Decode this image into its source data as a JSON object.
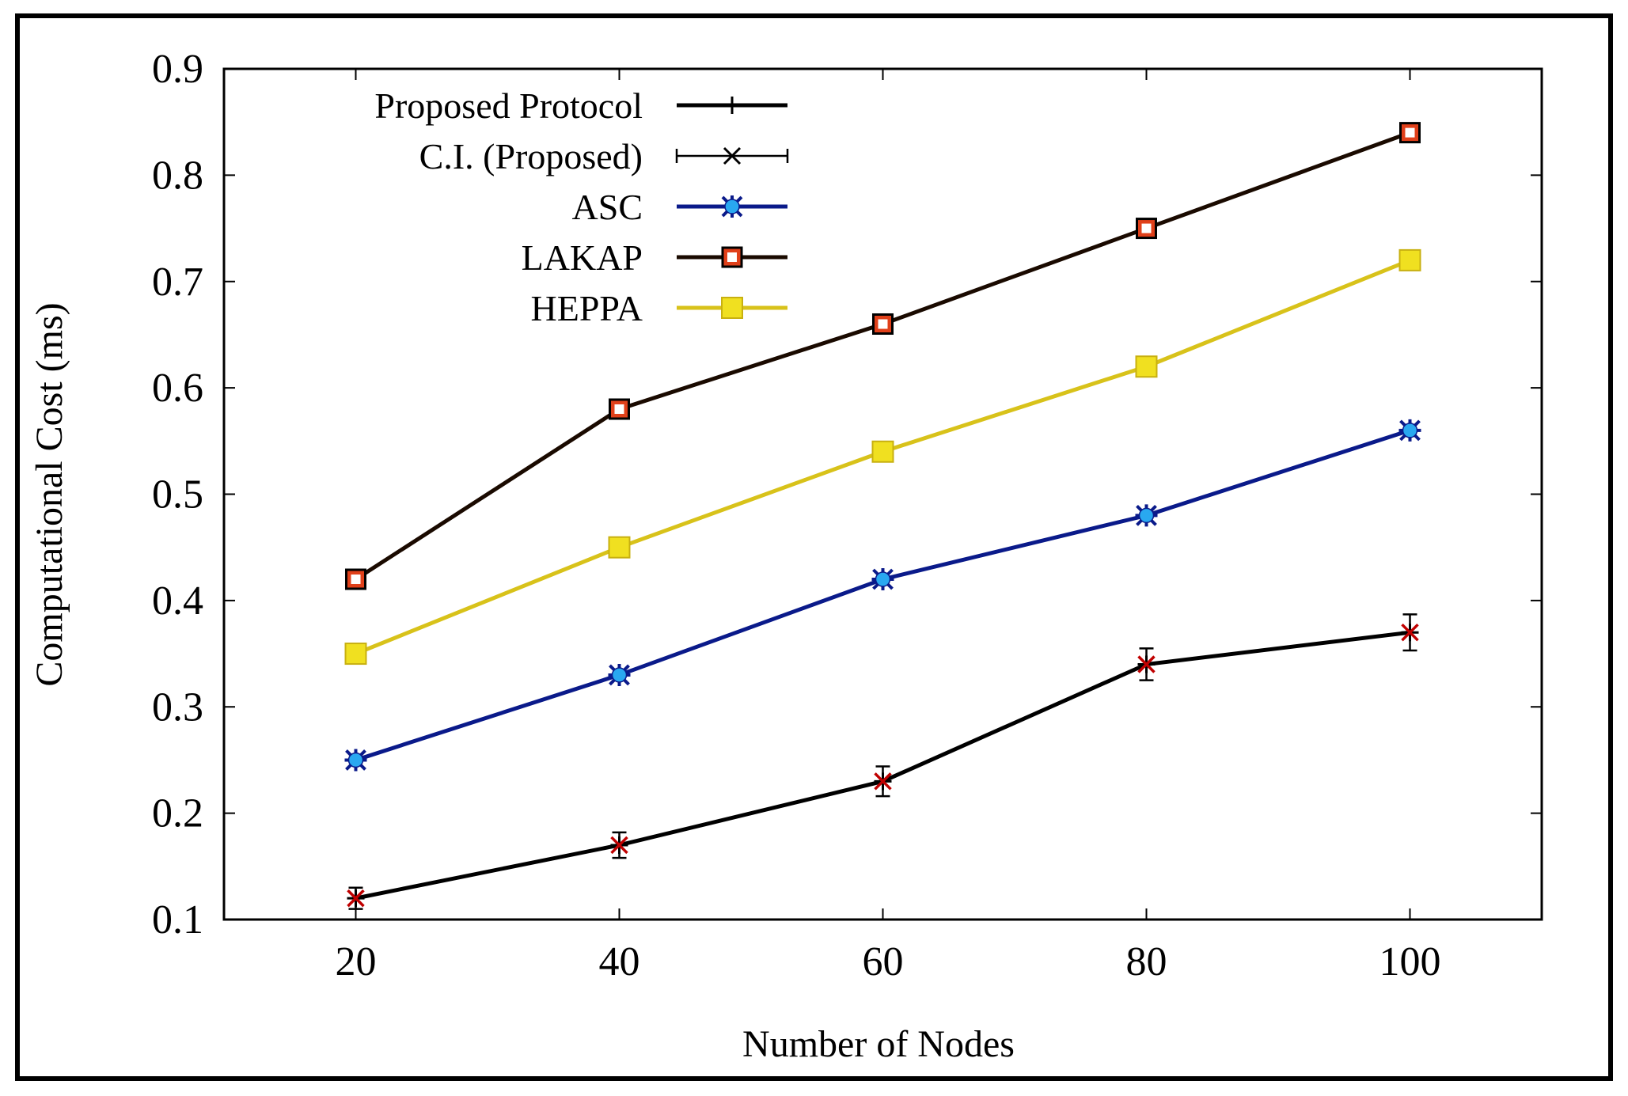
{
  "chart_data": {
    "type": "line",
    "title": "",
    "xlabel": "Number of Nodes",
    "ylabel": "Computational Cost (ms)",
    "x": [
      20,
      40,
      60,
      80,
      100
    ],
    "x_ticks": [
      "20",
      "40",
      "60",
      "80",
      "100"
    ],
    "y_ticks": [
      "0.1",
      "0.2",
      "0.3",
      "0.4",
      "0.5",
      "0.6",
      "0.7",
      "0.8",
      "0.9"
    ],
    "xlim": [
      10,
      110
    ],
    "ylim": [
      0.1,
      0.9
    ],
    "grid": false,
    "legend_position": "top-left",
    "series": [
      {
        "name": "Proposed Protocol",
        "values": [
          0.12,
          0.17,
          0.23,
          0.34,
          0.37
        ],
        "color": "#000000",
        "marker": "plus"
      },
      {
        "name": "C.I. (Proposed)",
        "values": [
          0.12,
          0.17,
          0.23,
          0.34,
          0.37
        ],
        "error": [
          0.01,
          0.012,
          0.014,
          0.015,
          0.017
        ],
        "color": "#7a0000",
        "marker": "cross"
      },
      {
        "name": "ASC",
        "values": [
          0.25,
          0.33,
          0.42,
          0.48,
          0.56
        ],
        "color": "#0a1a8a",
        "marker": "star-blue",
        "marker_color": "#29a8f0"
      },
      {
        "name": "LAKAP",
        "values": [
          0.42,
          0.58,
          0.66,
          0.75,
          0.84
        ],
        "color": "#1a0a00",
        "marker": "square-open",
        "marker_color": "#e0401a"
      },
      {
        "name": "HEPPA",
        "values": [
          0.35,
          0.45,
          0.54,
          0.62,
          0.72
        ],
        "color": "#d8c21a",
        "marker": "square-filled",
        "marker_color": "#f0e020"
      }
    ]
  }
}
